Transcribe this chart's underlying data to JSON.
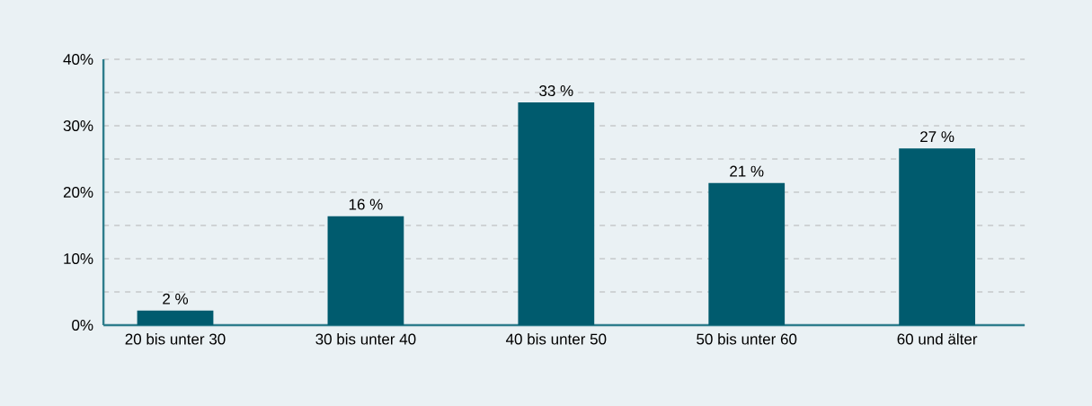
{
  "chart_data": {
    "type": "bar",
    "categories": [
      "20 bis unter 30",
      "30 bis unter 40",
      "40 bis unter 50",
      "50 bis unter 60",
      "60 und älter"
    ],
    "values": [
      2.2,
      16.4,
      33.5,
      21.4,
      26.6
    ],
    "value_labels": [
      "2 %",
      "16 %",
      "33 %",
      "21 %",
      "27 %"
    ],
    "color": "#005b6e",
    "ylim": [
      0,
      40
    ],
    "yticks": [
      {
        "value": 0,
        "label": "0%"
      },
      {
        "value": 5,
        "label": null
      },
      {
        "value": 10,
        "label": "10%"
      },
      {
        "value": 15,
        "label": null
      },
      {
        "value": 20,
        "label": "20%"
      },
      {
        "value": 25,
        "label": null
      },
      {
        "value": 30,
        "label": "30%"
      },
      {
        "value": 35,
        "label": null
      },
      {
        "value": 40,
        "label": "40%"
      }
    ],
    "grid": "y"
  }
}
